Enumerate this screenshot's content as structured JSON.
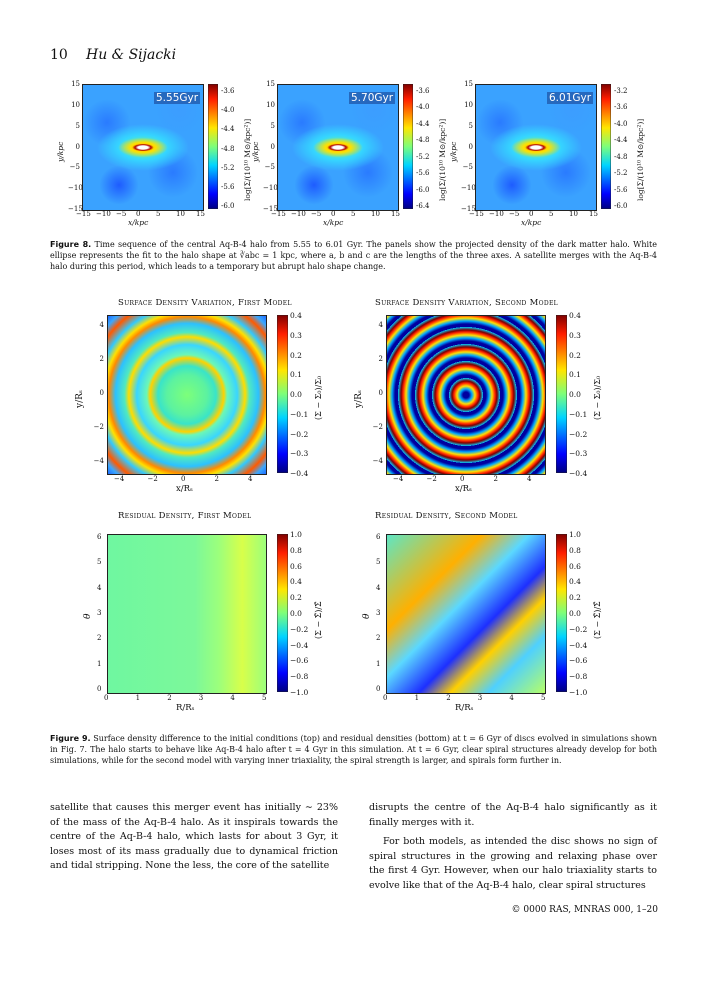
{
  "header": {
    "page_number": "10",
    "authors": "Hu & Sijacki"
  },
  "fig8": {
    "panels": [
      {
        "badge": "5.55Gyr",
        "cbar_ticks": [
          "-3.6",
          "-4.0",
          "-4.4",
          "-4.8",
          "-5.2",
          "-5.6",
          "-6.0"
        ]
      },
      {
        "badge": "5.70Gyr",
        "cbar_ticks": [
          "-3.6",
          "-4.0",
          "-4.4",
          "-4.8",
          "-5.2",
          "-5.6",
          "-6.0",
          "-6.4"
        ]
      },
      {
        "badge": "6.01Gyr",
        "cbar_ticks": [
          "-3.2",
          "-3.6",
          "-4.0",
          "-4.4",
          "-4.8",
          "-5.2",
          "-5.6",
          "-6.0"
        ]
      }
    ],
    "x_label": "x/kpc",
    "y_label": "y/kpc",
    "cbar_label": "log[Σ/(10¹⁰ M⊙/kpc²)]",
    "y_ticks": [
      "15",
      "10",
      "5",
      "0",
      "−5",
      "−10",
      "−15"
    ],
    "x_ticks": [
      "−15",
      "−10",
      "−5",
      "0",
      "5",
      "10",
      "15"
    ],
    "caption_label": "Figure 8.",
    "caption_text": "Time sequence of the central Aq-B-4 halo from 5.55 to 6.01 Gyr. The panels show the projected density of the dark matter halo. White ellipse represents the fit to the halo shape at ∛abc = 1 kpc, where a, b and c are the lengths of the three axes. A satellite merges with the Aq-B-4 halo during this period, which leads to a temporary but abrupt halo shape change."
  },
  "fig9": {
    "titles": [
      "Surface Density Variation, First Model",
      "Surface Density Variation, Second Model",
      "Residual Density, First Model",
      "Residual Density, Second Model"
    ],
    "top_x_label": "x/Rₛ",
    "top_y_label": "y/Rₛ",
    "bottom_x_label": "R/Rₛ",
    "bottom_y_label": "θ",
    "top_cbar_label": "(Σ − Σ₀)/Σ₀",
    "bottom_cbar_label": "(Σ − Σ̄)/Σ̄",
    "top_xy_ticks": [
      "−4",
      "−2",
      "0",
      "2",
      "4"
    ],
    "top_y_ticks": [
      "4",
      "2",
      "0",
      "−2",
      "−4"
    ],
    "top_cbar_ticks": [
      "0.4",
      "0.3",
      "0.2",
      "0.1",
      "0.0",
      "−0.1",
      "−0.2",
      "−0.3",
      "−0.4"
    ],
    "bottom_x_ticks": [
      "0",
      "1",
      "2",
      "3",
      "4",
      "5"
    ],
    "bottom_y_ticks": [
      "6",
      "5",
      "4",
      "3",
      "2",
      "1",
      "0"
    ],
    "bottom_cbar_ticks": [
      "1.0",
      "0.8",
      "0.6",
      "0.4",
      "0.2",
      "0.0",
      "−0.2",
      "−0.4",
      "−0.6",
      "−0.8",
      "−1.0"
    ],
    "caption_label": "Figure 9.",
    "caption_text": "Surface density difference to the initial conditions (top) and residual densities (bottom) at t = 6 Gyr of discs evolved in simulations shown in Fig. 7. The halo starts to behave like Aq-B-4 halo after t = 4 Gyr in this simulation. At t = 6 Gyr, clear spiral structures already develop for both simulations, while for the second model with varying inner triaxiality, the spiral strength is larger, and spirals form further in."
  },
  "body": {
    "left": "satellite that causes this merger event has initially ∼ 23% of the mass of the Aq-B-4 halo. As it inspirals towards the centre of the Aq-B-4 halo, which lasts for about 3 Gyr, it loses most of its mass gradually due to dynamical friction and tidal stripping. None the less, the core of the satellite",
    "right_p1": "disrupts the centre of the Aq-B-4 halo significantly as it finally merges with it.",
    "right_p2": "For both models, as intended the disc shows no sign of spiral structures in the growing and relaxing phase over the first 4 Gyr. However, when our halo triaxiality starts to evolve like that of the Aq-B-4 halo, clear spiral structures"
  },
  "footer": {
    "text": "© 0000 RAS, MNRAS 000, 1–20"
  }
}
